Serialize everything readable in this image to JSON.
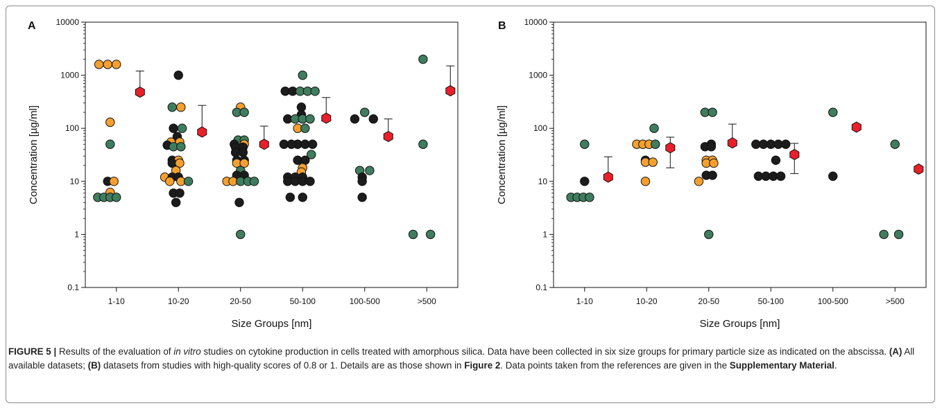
{
  "colors": {
    "black": "#1c1c1c",
    "orange": "#f5a02e",
    "green": "#3f7d5e",
    "red": "#e8202a"
  },
  "chart_data": [
    {
      "type": "scatter",
      "panel_label": "A",
      "xlabel": "Size Groups [nm]",
      "ylabel": "Concentration [µg/ml]",
      "yscale": "log",
      "ylim": [
        0.1,
        10000
      ],
      "yticks": [
        "0.1",
        "1",
        "10",
        "100",
        "1000",
        "10000"
      ],
      "categories": [
        "1-10",
        "10-20",
        "20-50",
        "50-100",
        "100-500",
        ">500"
      ],
      "points": [
        {
          "cat": 0,
          "off": -0.28,
          "y": 1600,
          "c": "orange"
        },
        {
          "cat": 0,
          "off": -0.14,
          "y": 1600,
          "c": "orange"
        },
        {
          "cat": 0,
          "off": 0.0,
          "y": 1600,
          "c": "orange"
        },
        {
          "cat": 0,
          "off": -0.1,
          "y": 130,
          "c": "orange"
        },
        {
          "cat": 0,
          "off": -0.1,
          "y": 50,
          "c": "green"
        },
        {
          "cat": 0,
          "off": -0.14,
          "y": 10,
          "c": "black"
        },
        {
          "cat": 0,
          "off": -0.04,
          "y": 10,
          "c": "orange"
        },
        {
          "cat": 0,
          "off": -0.1,
          "y": 6.2,
          "c": "orange"
        },
        {
          "cat": 0,
          "off": -0.3,
          "y": 5,
          "c": "green"
        },
        {
          "cat": 0,
          "off": -0.2,
          "y": 5,
          "c": "green"
        },
        {
          "cat": 0,
          "off": -0.1,
          "y": 5,
          "c": "green"
        },
        {
          "cat": 0,
          "off": 0.0,
          "y": 5,
          "c": "green"
        },
        {
          "cat": 1,
          "off": 0.0,
          "y": 1000,
          "c": "black"
        },
        {
          "cat": 1,
          "off": -0.1,
          "y": 250,
          "c": "green"
        },
        {
          "cat": 1,
          "off": 0.04,
          "y": 250,
          "c": "orange"
        },
        {
          "cat": 1,
          "off": -0.08,
          "y": 100,
          "c": "black"
        },
        {
          "cat": 1,
          "off": 0.06,
          "y": 100,
          "c": "green"
        },
        {
          "cat": 1,
          "off": -0.02,
          "y": 70,
          "c": "black"
        },
        {
          "cat": 1,
          "off": -0.12,
          "y": 55,
          "c": "orange"
        },
        {
          "cat": 1,
          "off": 0.02,
          "y": 55,
          "c": "orange"
        },
        {
          "cat": 1,
          "off": -0.18,
          "y": 48,
          "c": "black"
        },
        {
          "cat": 1,
          "off": -0.08,
          "y": 45,
          "c": "green"
        },
        {
          "cat": 1,
          "off": 0.04,
          "y": 45,
          "c": "green"
        },
        {
          "cat": 1,
          "off": -0.1,
          "y": 25,
          "c": "black"
        },
        {
          "cat": 1,
          "off": 0.0,
          "y": 25,
          "c": "orange"
        },
        {
          "cat": 1,
          "off": -0.1,
          "y": 22,
          "c": "black"
        },
        {
          "cat": 1,
          "off": 0.02,
          "y": 22,
          "c": "orange"
        },
        {
          "cat": 1,
          "off": -0.04,
          "y": 16,
          "c": "orange"
        },
        {
          "cat": 1,
          "off": -0.22,
          "y": 12,
          "c": "orange"
        },
        {
          "cat": 1,
          "off": -0.1,
          "y": 12,
          "c": "black"
        },
        {
          "cat": 1,
          "off": 0.0,
          "y": 12,
          "c": "black"
        },
        {
          "cat": 1,
          "off": -0.14,
          "y": 10,
          "c": "orange"
        },
        {
          "cat": 1,
          "off": 0.04,
          "y": 10,
          "c": "orange"
        },
        {
          "cat": 1,
          "off": 0.16,
          "y": 10,
          "c": "green"
        },
        {
          "cat": 1,
          "off": -0.08,
          "y": 6,
          "c": "black"
        },
        {
          "cat": 1,
          "off": 0.02,
          "y": 6,
          "c": "black"
        },
        {
          "cat": 1,
          "off": -0.04,
          "y": 4,
          "c": "black"
        },
        {
          "cat": 2,
          "off": 0.0,
          "y": 250,
          "c": "orange"
        },
        {
          "cat": 2,
          "off": -0.06,
          "y": 200,
          "c": "green"
        },
        {
          "cat": 2,
          "off": 0.06,
          "y": 200,
          "c": "green"
        },
        {
          "cat": 2,
          "off": -0.04,
          "y": 60,
          "c": "green"
        },
        {
          "cat": 2,
          "off": 0.06,
          "y": 60,
          "c": "green"
        },
        {
          "cat": 2,
          "off": -0.1,
          "y": 50,
          "c": "black"
        },
        {
          "cat": 2,
          "off": 0.06,
          "y": 50,
          "c": "orange"
        },
        {
          "cat": 2,
          "off": -0.08,
          "y": 44,
          "c": "black"
        },
        {
          "cat": 2,
          "off": 0.04,
          "y": 44,
          "c": "black"
        },
        {
          "cat": 2,
          "off": -0.08,
          "y": 35,
          "c": "black"
        },
        {
          "cat": 2,
          "off": 0.04,
          "y": 35,
          "c": "black"
        },
        {
          "cat": 2,
          "off": -0.06,
          "y": 25,
          "c": "black"
        },
        {
          "cat": 2,
          "off": 0.06,
          "y": 25,
          "c": "black"
        },
        {
          "cat": 2,
          "off": -0.06,
          "y": 22,
          "c": "orange"
        },
        {
          "cat": 2,
          "off": 0.06,
          "y": 22,
          "c": "orange"
        },
        {
          "cat": 2,
          "off": 0.0,
          "y": 16,
          "c": "green"
        },
        {
          "cat": 2,
          "off": -0.06,
          "y": 13,
          "c": "black"
        },
        {
          "cat": 2,
          "off": 0.06,
          "y": 13,
          "c": "black"
        },
        {
          "cat": 2,
          "off": -0.22,
          "y": 10,
          "c": "orange"
        },
        {
          "cat": 2,
          "off": -0.12,
          "y": 10,
          "c": "orange"
        },
        {
          "cat": 2,
          "off": 0.0,
          "y": 10,
          "c": "green"
        },
        {
          "cat": 2,
          "off": 0.12,
          "y": 10,
          "c": "green"
        },
        {
          "cat": 2,
          "off": 0.22,
          "y": 10,
          "c": "green"
        },
        {
          "cat": 2,
          "off": -0.02,
          "y": 4,
          "c": "black"
        },
        {
          "cat": 2,
          "off": 0.0,
          "y": 1,
          "c": "green"
        },
        {
          "cat": 3,
          "off": 0.0,
          "y": 1000,
          "c": "green"
        },
        {
          "cat": 3,
          "off": -0.28,
          "y": 500,
          "c": "black"
        },
        {
          "cat": 3,
          "off": -0.16,
          "y": 500,
          "c": "black"
        },
        {
          "cat": 3,
          "off": -0.04,
          "y": 500,
          "c": "green"
        },
        {
          "cat": 3,
          "off": 0.08,
          "y": 500,
          "c": "green"
        },
        {
          "cat": 3,
          "off": 0.2,
          "y": 500,
          "c": "green"
        },
        {
          "cat": 3,
          "off": -0.02,
          "y": 250,
          "c": "black"
        },
        {
          "cat": 3,
          "off": -0.02,
          "y": 180,
          "c": "black"
        },
        {
          "cat": 3,
          "off": -0.24,
          "y": 150,
          "c": "black"
        },
        {
          "cat": 3,
          "off": -0.12,
          "y": 150,
          "c": "green"
        },
        {
          "cat": 3,
          "off": 0.0,
          "y": 150,
          "c": "green"
        },
        {
          "cat": 3,
          "off": 0.12,
          "y": 150,
          "c": "green"
        },
        {
          "cat": 3,
          "off": -0.08,
          "y": 100,
          "c": "orange"
        },
        {
          "cat": 3,
          "off": 0.04,
          "y": 100,
          "c": "green"
        },
        {
          "cat": 3,
          "off": -0.08,
          "y": 50,
          "c": "black"
        },
        {
          "cat": 3,
          "off": 0.04,
          "y": 50,
          "c": "black"
        },
        {
          "cat": 3,
          "off": -0.3,
          "y": 50,
          "c": "black"
        },
        {
          "cat": 3,
          "off": -0.18,
          "y": 50,
          "c": "black"
        },
        {
          "cat": 3,
          "off": 0.16,
          "y": 50,
          "c": "black"
        },
        {
          "cat": 3,
          "off": 0.14,
          "y": 32,
          "c": "green"
        },
        {
          "cat": 3,
          "off": -0.08,
          "y": 25,
          "c": "black"
        },
        {
          "cat": 3,
          "off": 0.04,
          "y": 25,
          "c": "black"
        },
        {
          "cat": 3,
          "off": 0.0,
          "y": 18,
          "c": "orange"
        },
        {
          "cat": 3,
          "off": -0.02,
          "y": 15,
          "c": "orange"
        },
        {
          "cat": 3,
          "off": -0.24,
          "y": 12,
          "c": "black"
        },
        {
          "cat": 3,
          "off": -0.12,
          "y": 12,
          "c": "black"
        },
        {
          "cat": 3,
          "off": 0.0,
          "y": 12,
          "c": "black"
        },
        {
          "cat": 3,
          "off": -0.24,
          "y": 10,
          "c": "black"
        },
        {
          "cat": 3,
          "off": -0.12,
          "y": 10,
          "c": "black"
        },
        {
          "cat": 3,
          "off": 0.0,
          "y": 10,
          "c": "black"
        },
        {
          "cat": 3,
          "off": 0.12,
          "y": 10,
          "c": "black"
        },
        {
          "cat": 3,
          "off": -0.2,
          "y": 5,
          "c": "black"
        },
        {
          "cat": 3,
          "off": 0.0,
          "y": 5,
          "c": "black"
        },
        {
          "cat": 4,
          "off": 0.0,
          "y": 200,
          "c": "green"
        },
        {
          "cat": 4,
          "off": -0.16,
          "y": 150,
          "c": "black"
        },
        {
          "cat": 4,
          "off": 0.14,
          "y": 150,
          "c": "black"
        },
        {
          "cat": 4,
          "off": -0.08,
          "y": 16,
          "c": "green"
        },
        {
          "cat": 4,
          "off": 0.08,
          "y": 16,
          "c": "green"
        },
        {
          "cat": 4,
          "off": -0.04,
          "y": 12,
          "c": "black"
        },
        {
          "cat": 4,
          "off": -0.04,
          "y": 10,
          "c": "black"
        },
        {
          "cat": 4,
          "off": -0.04,
          "y": 5,
          "c": "black"
        },
        {
          "cat": 5,
          "off": -0.06,
          "y": 2000,
          "c": "green"
        },
        {
          "cat": 5,
          "off": -0.06,
          "y": 50,
          "c": "green"
        },
        {
          "cat": 5,
          "off": -0.22,
          "y": 1,
          "c": "green"
        },
        {
          "cat": 5,
          "off": 0.06,
          "y": 1,
          "c": "green"
        }
      ],
      "means": [
        {
          "cat": 0,
          "y": 480,
          "err": 1200
        },
        {
          "cat": 1,
          "y": 85,
          "err": 270
        },
        {
          "cat": 2,
          "y": 50,
          "err": 110
        },
        {
          "cat": 3,
          "y": 155,
          "err": 380
        },
        {
          "cat": 4,
          "y": 70,
          "err": 150
        },
        {
          "cat": 5,
          "y": 510,
          "err": 1500
        }
      ]
    },
    {
      "type": "scatter",
      "panel_label": "B",
      "xlabel": "Size Groups [nm]",
      "ylabel": "Concentration [µg/ml]",
      "yscale": "log",
      "ylim": [
        0.1,
        10000
      ],
      "yticks": [
        "0.1",
        "1",
        "10",
        "100",
        "1000",
        "10000"
      ],
      "categories": [
        "1-10",
        "10-20",
        "20-50",
        "50-100",
        "100-500",
        ">500"
      ],
      "points": [
        {
          "cat": 0,
          "off": 0.0,
          "y": 50,
          "c": "green"
        },
        {
          "cat": 0,
          "off": 0.0,
          "y": 10,
          "c": "black"
        },
        {
          "cat": 0,
          "off": -0.22,
          "y": 5,
          "c": "green"
        },
        {
          "cat": 0,
          "off": -0.12,
          "y": 5,
          "c": "green"
        },
        {
          "cat": 0,
          "off": -0.02,
          "y": 5,
          "c": "green"
        },
        {
          "cat": 0,
          "off": 0.08,
          "y": 5,
          "c": "green"
        },
        {
          "cat": 1,
          "off": 0.12,
          "y": 100,
          "c": "green"
        },
        {
          "cat": 1,
          "off": -0.16,
          "y": 50,
          "c": "orange"
        },
        {
          "cat": 1,
          "off": -0.06,
          "y": 50,
          "c": "orange"
        },
        {
          "cat": 1,
          "off": 0.04,
          "y": 50,
          "c": "orange"
        },
        {
          "cat": 1,
          "off": 0.14,
          "y": 50,
          "c": "green"
        },
        {
          "cat": 1,
          "off": -0.02,
          "y": 25,
          "c": "black"
        },
        {
          "cat": 1,
          "off": -0.02,
          "y": 23,
          "c": "orange"
        },
        {
          "cat": 1,
          "off": 0.1,
          "y": 23,
          "c": "orange"
        },
        {
          "cat": 1,
          "off": -0.02,
          "y": 10,
          "c": "orange"
        },
        {
          "cat": 2,
          "off": -0.06,
          "y": 200,
          "c": "green"
        },
        {
          "cat": 2,
          "off": 0.06,
          "y": 200,
          "c": "green"
        },
        {
          "cat": 2,
          "off": -0.06,
          "y": 45,
          "c": "black"
        },
        {
          "cat": 2,
          "off": 0.04,
          "y": 50,
          "c": "black"
        },
        {
          "cat": 2,
          "off": 0.04,
          "y": 45,
          "c": "black"
        },
        {
          "cat": 2,
          "off": -0.04,
          "y": 25,
          "c": "orange"
        },
        {
          "cat": 2,
          "off": 0.06,
          "y": 25,
          "c": "orange"
        },
        {
          "cat": 2,
          "off": -0.04,
          "y": 22,
          "c": "orange"
        },
        {
          "cat": 2,
          "off": 0.08,
          "y": 22,
          "c": "orange"
        },
        {
          "cat": 2,
          "off": -0.04,
          "y": 13,
          "c": "black"
        },
        {
          "cat": 2,
          "off": 0.06,
          "y": 13,
          "c": "black"
        },
        {
          "cat": 2,
          "off": -0.16,
          "y": 10,
          "c": "orange"
        },
        {
          "cat": 2,
          "off": 0.0,
          "y": 1,
          "c": "green"
        },
        {
          "cat": 3,
          "off": -0.24,
          "y": 50,
          "c": "black"
        },
        {
          "cat": 3,
          "off": -0.12,
          "y": 50,
          "c": "black"
        },
        {
          "cat": 3,
          "off": 0.0,
          "y": 50,
          "c": "black"
        },
        {
          "cat": 3,
          "off": 0.12,
          "y": 50,
          "c": "black"
        },
        {
          "cat": 3,
          "off": 0.24,
          "y": 50,
          "c": "black"
        },
        {
          "cat": 3,
          "off": 0.08,
          "y": 25,
          "c": "black"
        },
        {
          "cat": 3,
          "off": -0.2,
          "y": 12.5,
          "c": "black"
        },
        {
          "cat": 3,
          "off": -0.08,
          "y": 12.5,
          "c": "black"
        },
        {
          "cat": 3,
          "off": 0.04,
          "y": 12.5,
          "c": "black"
        },
        {
          "cat": 3,
          "off": 0.16,
          "y": 12.5,
          "c": "black"
        },
        {
          "cat": 4,
          "off": 0.0,
          "y": 200,
          "c": "green"
        },
        {
          "cat": 4,
          "off": 0.0,
          "y": 12.5,
          "c": "black"
        },
        {
          "cat": 5,
          "off": 0.0,
          "y": 50,
          "c": "green"
        },
        {
          "cat": 5,
          "off": -0.18,
          "y": 1,
          "c": "green"
        },
        {
          "cat": 5,
          "off": 0.06,
          "y": 1,
          "c": "green"
        }
      ],
      "means": [
        {
          "cat": 0,
          "y": 12,
          "err": 29
        },
        {
          "cat": 1,
          "y": 43,
          "err": 68,
          "errlow": 18
        },
        {
          "cat": 2,
          "y": 53,
          "err": 120
        },
        {
          "cat": 3,
          "y": 32,
          "err": 52,
          "errlow": 14
        },
        {
          "cat": 4,
          "y": 105,
          "err": null
        },
        {
          "cat": 5,
          "y": 17,
          "err": null
        }
      ]
    }
  ],
  "caption": {
    "figure_label": "FIGURE 5 |",
    "part1": " Results of the evaluation of ",
    "italic": "in vitro",
    "part2": " studies on cytokine production in cells treated with amorphous silica. Data have been collected in six size groups for primary particle size as indicated on the abscissa. ",
    "label_a": "(A)",
    "part3": " All available datasets; ",
    "label_b": "(B)",
    "part4": " datasets from studies with high-quality scores of 0.8 or 1. Details are as those shown in ",
    "figure_ref": "Figure 2",
    "part5": ". Data points taken from the references are given in the ",
    "supp": "Supplementary Material",
    "part6": "."
  }
}
